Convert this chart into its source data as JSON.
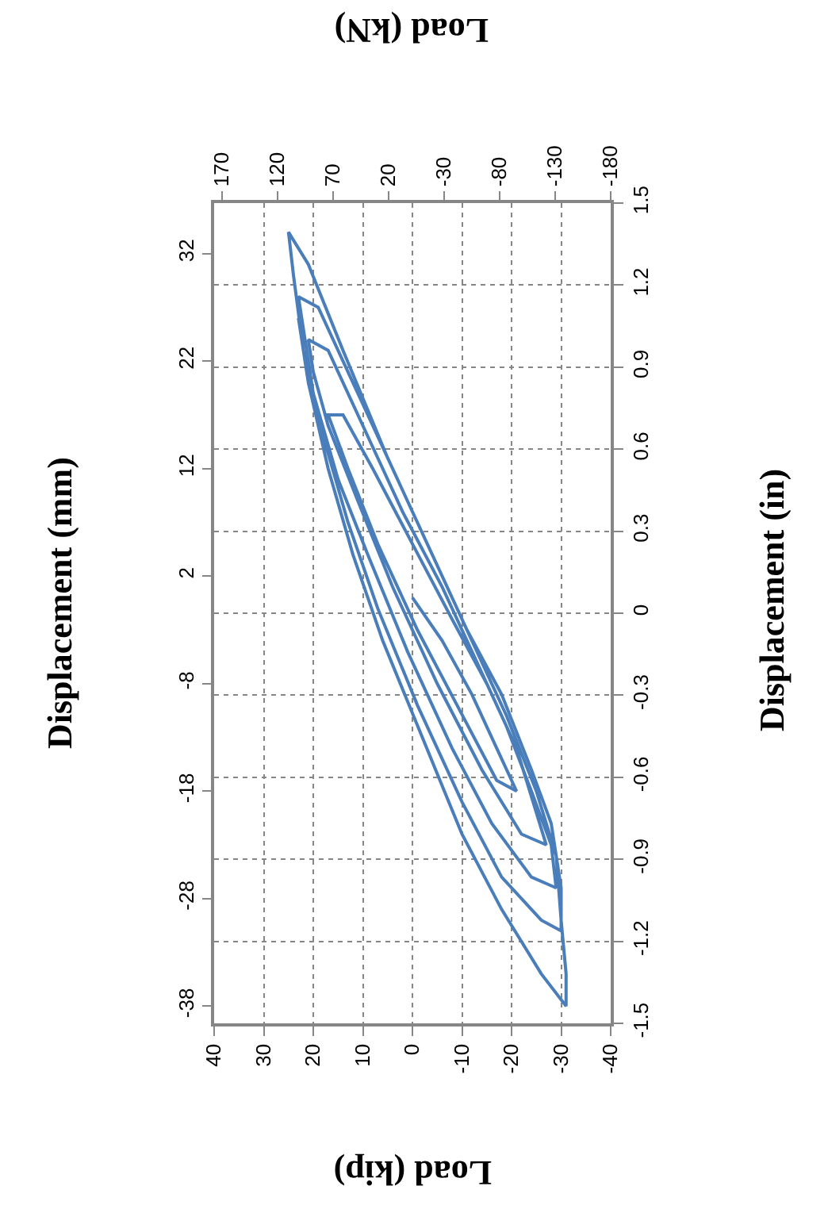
{
  "chart_data": {
    "type": "line",
    "xlabel": "Load (kip)",
    "x2label": "Load (kN)",
    "ylabel": "Displacement (mm)",
    "y2label": "Displacement (in)",
    "xlim": [
      40,
      -40
    ],
    "xticks": [
      40,
      30,
      20,
      10,
      0,
      -10,
      -20,
      -30,
      -40
    ],
    "x2lim": [
      177,
      -180
    ],
    "x2ticks": [
      170,
      120,
      70,
      20,
      -30,
      -80,
      -130,
      -180
    ],
    "ylim": [
      -39.6,
      36.7
    ],
    "yticks": [
      -38,
      -28,
      -18,
      -8,
      2,
      12,
      22,
      32
    ],
    "y2lim": [
      -1.5,
      1.5
    ],
    "y2ticks": [
      -1.5,
      -1.2,
      -0.9,
      -0.6,
      -0.3,
      0,
      0.3,
      0.6,
      0.9,
      1.2,
      1.5
    ],
    "grid": true,
    "marker": "none",
    "line_style": "solid",
    "series": [
      {
        "color": "#4a7ebb",
        "x": [
          0,
          -6,
          -12,
          -17,
          -21,
          -17,
          -9,
          -1,
          7,
          13,
          17,
          14,
          8,
          0,
          -8,
          -15,
          -21,
          -25,
          -27,
          -22,
          -14,
          -5,
          4,
          11,
          17,
          20,
          21,
          17,
          10,
          2,
          -6,
          -13,
          -19,
          -24,
          -28,
          -29,
          -24,
          -16,
          -8,
          1,
          9,
          15,
          20,
          22,
          23,
          19,
          12,
          4,
          -4,
          -11,
          -18,
          -24,
          -28,
          -30,
          -30,
          -26,
          -18,
          -10,
          -1,
          7,
          13,
          18,
          22,
          24,
          25,
          21,
          14,
          5,
          -4,
          -12,
          -19,
          -25,
          -29,
          -30,
          -31,
          -31,
          -26,
          -18,
          -10,
          -2,
          6,
          12,
          17,
          21,
          23
        ],
        "values": [
          0,
          -4,
          -9,
          -14,
          -18,
          -17,
          -10,
          -3,
          5,
          12,
          17,
          17,
          12,
          5,
          -2,
          -8,
          -14,
          -20,
          -23,
          -22,
          -16,
          -8,
          1,
          9,
          16,
          21,
          24,
          23,
          16,
          8,
          1,
          -6,
          -12,
          -18,
          -23,
          -27,
          -26,
          -21,
          -14,
          -5,
          4,
          11,
          19,
          25,
          28,
          27,
          20,
          12,
          4,
          -3,
          -9,
          -16,
          -21,
          -27,
          -31,
          -30,
          -26,
          -19,
          -10,
          -1,
          7,
          15,
          23,
          30,
          34,
          31,
          23,
          13,
          4,
          -4,
          -11,
          -18,
          -24,
          -30,
          -35,
          -38,
          -35,
          -29,
          -22,
          -13,
          -4,
          4,
          12,
          20,
          26
        ]
      }
    ]
  }
}
